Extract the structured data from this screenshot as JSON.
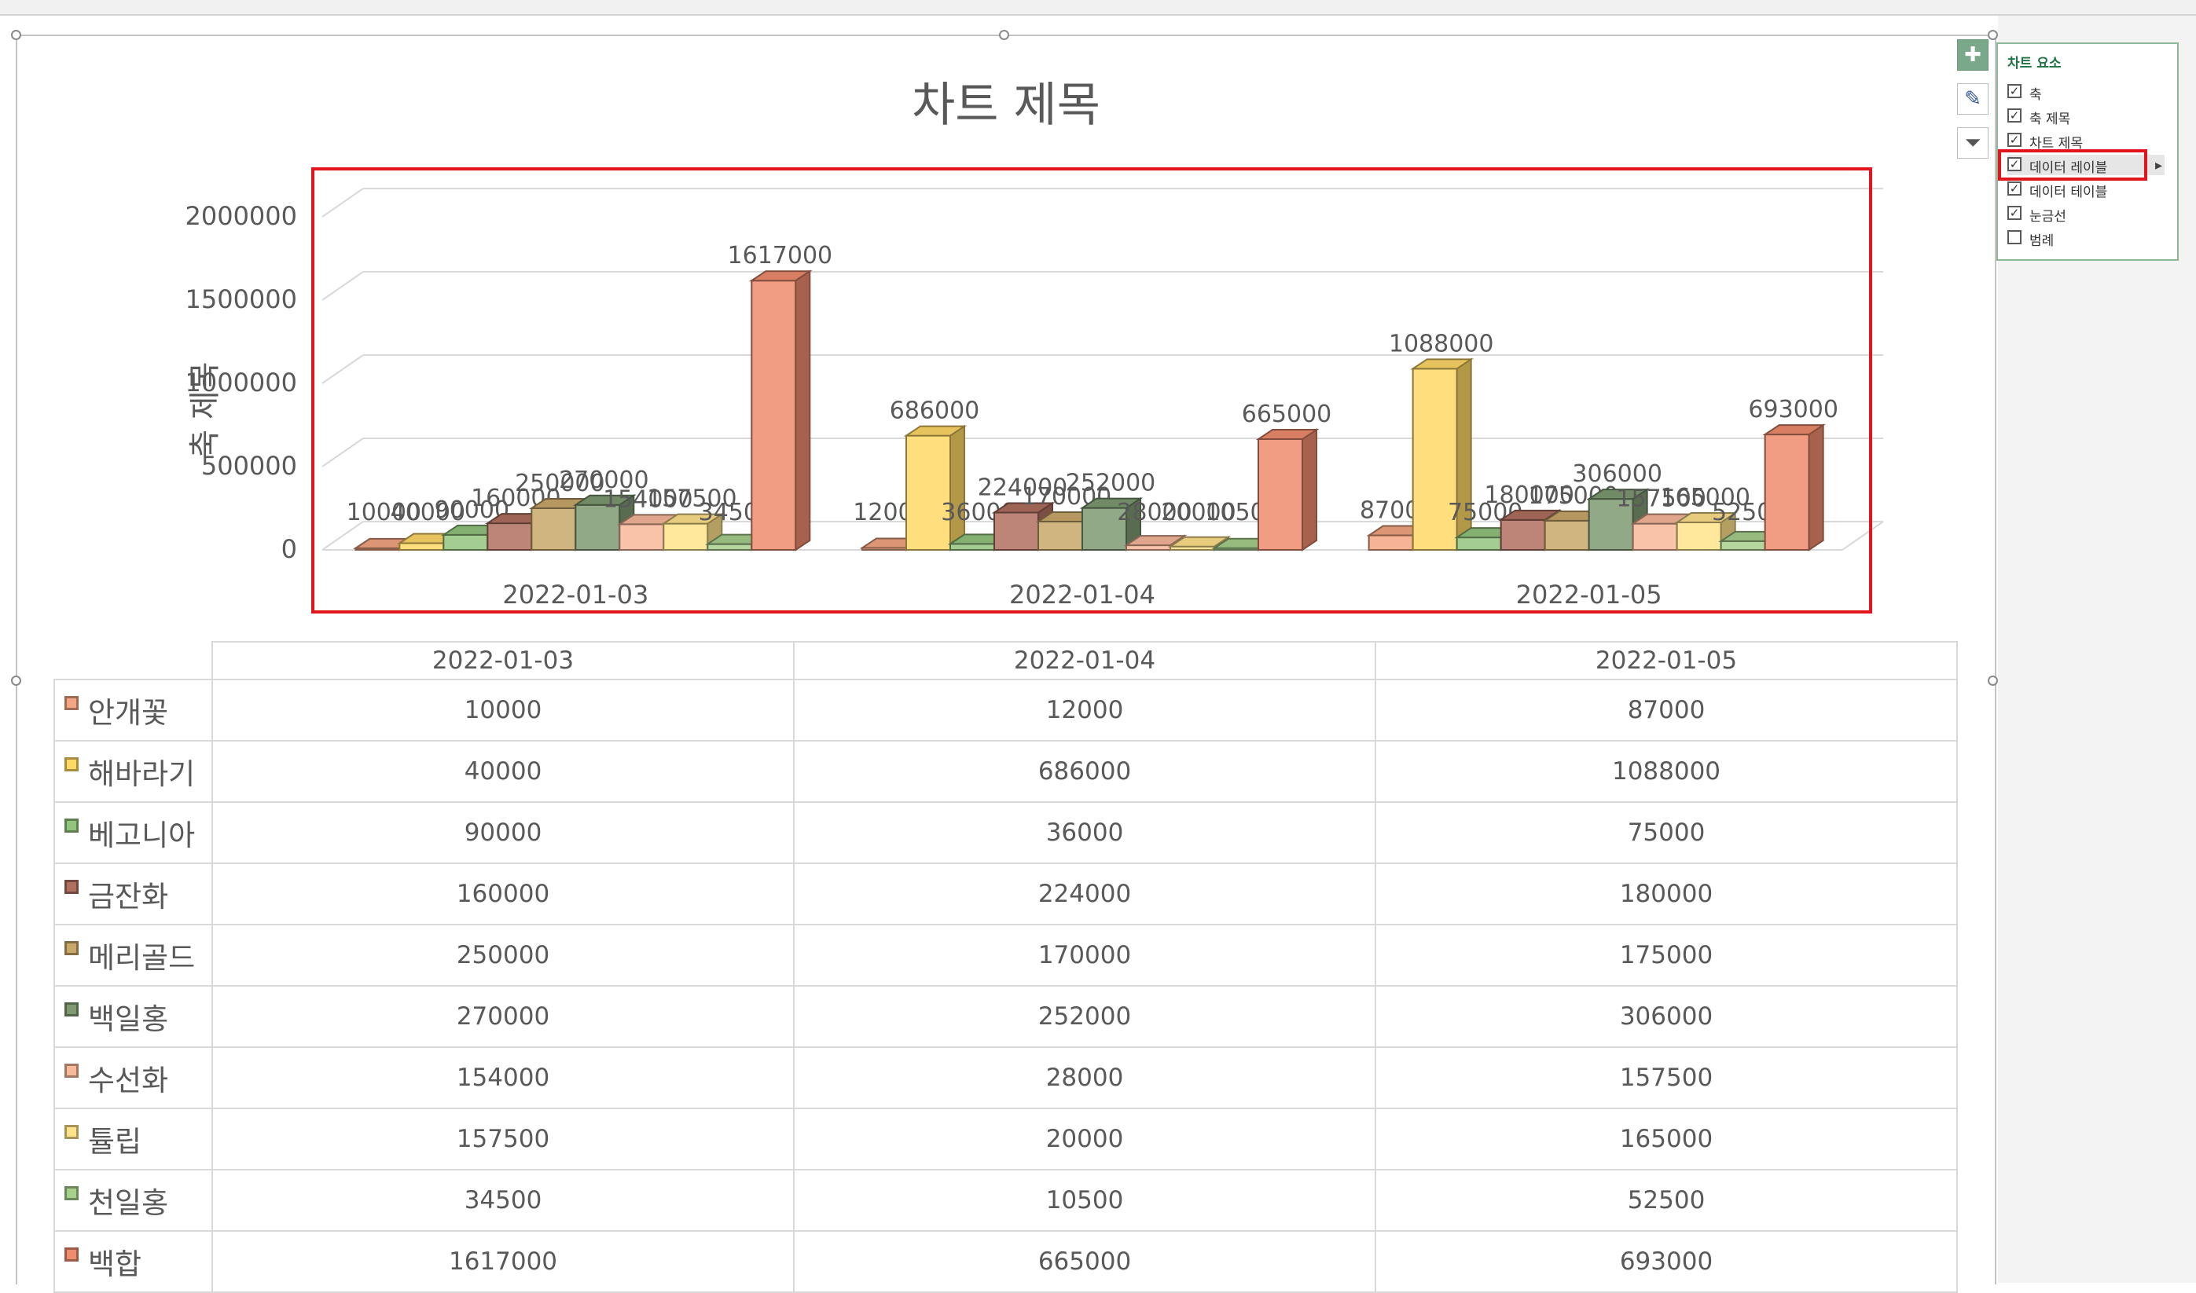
{
  "chart": {
    "title": "차트 제목",
    "axis_title": "축 제목"
  },
  "chart_data": {
    "type": "bar",
    "categories": [
      "2022-01-03",
      "2022-01-04",
      "2022-01-05"
    ],
    "series": [
      {
        "name": "안개꽃",
        "values": [
          10000,
          12000,
          87000
        ],
        "color": "#f4a582"
      },
      {
        "name": "해바라기",
        "values": [
          40000,
          686000,
          1088000
        ],
        "color": "#ffd966"
      },
      {
        "name": "베고니아",
        "values": [
          90000,
          36000,
          75000
        ],
        "color": "#93c47d"
      },
      {
        "name": "금잔화",
        "values": [
          160000,
          224000,
          180000
        ],
        "color": "#b07060"
      },
      {
        "name": "메리골드",
        "values": [
          250000,
          170000,
          175000
        ],
        "color": "#c9a86a"
      },
      {
        "name": "백일홍",
        "values": [
          270000,
          252000,
          306000
        ],
        "color": "#7f9a72"
      },
      {
        "name": "수선화",
        "values": [
          154000,
          28000,
          157500
        ],
        "color": "#f8b89a"
      },
      {
        "name": "튤립",
        "values": [
          157500,
          20000,
          165000
        ],
        "color": "#ffe38a"
      },
      {
        "name": "천일홍",
        "values": [
          34500,
          10500,
          52500
        ],
        "color": "#a8d08d"
      },
      {
        "name": "백합",
        "values": [
          1617000,
          665000,
          693000
        ],
        "color": "#ef8c6e"
      }
    ],
    "yticks": [
      "0",
      "500000",
      "1000000",
      "1500000",
      "2000000"
    ],
    "ylim": [
      0,
      2000000
    ],
    "ylabel": "축 제목",
    "xlabel": "",
    "grid": true,
    "legend": "none",
    "data_table": true
  },
  "chart_elements_panel": {
    "title": "차트 요소",
    "items": [
      {
        "label": "축",
        "checked": true
      },
      {
        "label": "축 제목",
        "checked": true
      },
      {
        "label": "차트 제목",
        "checked": true
      },
      {
        "label": "데이터 레이블",
        "checked": true
      },
      {
        "label": "데이터 테이블",
        "checked": true
      },
      {
        "label": "눈금선",
        "checked": true
      },
      {
        "label": "범례",
        "checked": false
      }
    ]
  },
  "side_buttons": [
    "chart-elements-icon",
    "chart-styles-icon",
    "chart-filters-icon"
  ]
}
